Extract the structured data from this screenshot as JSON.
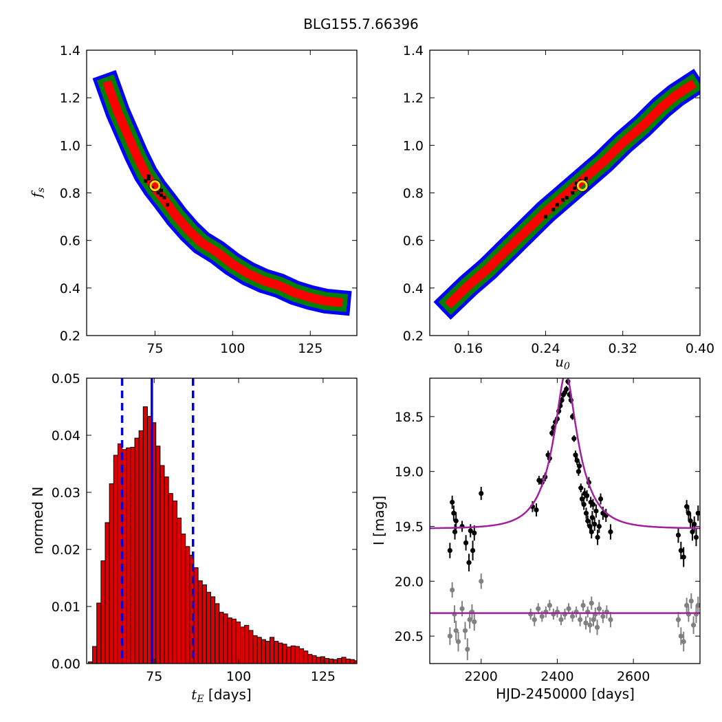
{
  "figure_title": "BLG155.7.66396",
  "chart_data": [
    {
      "id": "p1",
      "type": "heatmap",
      "title": "",
      "xlabel": "",
      "ylabel_main": "f",
      "ylabel_sub": "s",
      "xlim": [
        53,
        140
      ],
      "ylim": [
        0.2,
        1.4
      ],
      "xticks": [
        75,
        100,
        125
      ],
      "yticks": [
        0.2,
        0.4,
        0.6,
        0.8,
        1.0,
        1.2,
        1.4
      ],
      "xtick_labels": [
        "75",
        "100",
        "125"
      ],
      "ytick_labels": [
        "0.2",
        "0.4",
        "0.6",
        "0.8",
        "1.0",
        "1.2",
        "1.4"
      ],
      "colors": {
        "sigma3": "#0000ff",
        "sigma2": "#008000",
        "sigma1": "#ff0000",
        "samples": "#000000",
        "best_fit": "#ffd700"
      },
      "ridge": [
        [
          60,
          1.25
        ],
        [
          63,
          1.14
        ],
        [
          66,
          1.05
        ],
        [
          69,
          0.96
        ],
        [
          72,
          0.88
        ],
        [
          75,
          0.82
        ],
        [
          78,
          0.77
        ],
        [
          82,
          0.7
        ],
        [
          86,
          0.64
        ],
        [
          90,
          0.59
        ],
        [
          95,
          0.55
        ],
        [
          100,
          0.5
        ],
        [
          105,
          0.46
        ],
        [
          110,
          0.43
        ],
        [
          115,
          0.41
        ],
        [
          120,
          0.38
        ],
        [
          125,
          0.36
        ],
        [
          130,
          0.345
        ],
        [
          134,
          0.34
        ]
      ],
      "best_fit": [
        75,
        0.83
      ],
      "samples": [
        [
          72,
          0.85
        ],
        [
          73,
          0.87
        ],
        [
          74,
          0.82
        ],
        [
          76,
          0.8
        ],
        [
          77,
          0.79
        ],
        [
          78,
          0.78
        ],
        [
          77,
          0.81
        ],
        [
          73,
          0.86
        ],
        [
          79,
          0.75
        ]
      ]
    },
    {
      "id": "p2",
      "type": "heatmap",
      "title": "",
      "xlabel_main": "u",
      "xlabel_sub": "0",
      "ylabel": "",
      "xlim": [
        0.12,
        0.4
      ],
      "ylim": [
        0.2,
        1.4
      ],
      "xticks": [
        0.16,
        0.24,
        0.32,
        0.4
      ],
      "yticks": [
        0.2,
        0.4,
        0.6,
        0.8,
        1.0,
        1.2,
        1.4
      ],
      "xtick_labels": [
        "0.16",
        "0.24",
        "0.32",
        "0.40"
      ],
      "ytick_labels": [
        "0.2",
        "0.4",
        "0.6",
        "0.8",
        "1.0",
        "1.2",
        "1.4"
      ],
      "colors": {
        "sigma3": "#0000ff",
        "sigma2": "#008000",
        "sigma1": "#ff0000",
        "samples": "#000000",
        "best_fit": "#ffd700"
      },
      "ridge": [
        [
          0.142,
          0.34
        ],
        [
          0.16,
          0.41
        ],
        [
          0.18,
          0.48
        ],
        [
          0.2,
          0.56
        ],
        [
          0.22,
          0.64
        ],
        [
          0.24,
          0.72
        ],
        [
          0.26,
          0.79
        ],
        [
          0.28,
          0.86
        ],
        [
          0.3,
          0.93
        ],
        [
          0.32,
          1.01
        ],
        [
          0.34,
          1.08
        ],
        [
          0.36,
          1.16
        ],
        [
          0.375,
          1.21
        ],
        [
          0.39,
          1.25
        ]
      ],
      "best_fit": [
        0.278,
        0.83
      ],
      "samples": [
        [
          0.27,
          0.82
        ],
        [
          0.268,
          0.8
        ],
        [
          0.262,
          0.78
        ],
        [
          0.258,
          0.77
        ],
        [
          0.252,
          0.75
        ],
        [
          0.248,
          0.73
        ],
        [
          0.276,
          0.85
        ],
        [
          0.282,
          0.86
        ],
        [
          0.24,
          0.7
        ],
        [
          0.272,
          0.84
        ]
      ]
    },
    {
      "id": "p3",
      "type": "bar",
      "title": "",
      "xlabel_main": "t",
      "xlabel_sub": "E",
      "xlabel_rest": " [days]",
      "ylabel": "normed N",
      "xlim": [
        55,
        135
      ],
      "ylim": [
        0,
        0.05
      ],
      "xticks": [
        75,
        100,
        125
      ],
      "yticks": [
        0.0,
        0.01,
        0.02,
        0.03,
        0.04,
        0.05
      ],
      "xtick_labels": [
        "75",
        "100",
        "125"
      ],
      "ytick_labels": [
        "0.00",
        "0.01",
        "0.02",
        "0.03",
        "0.04",
        "0.05"
      ],
      "bar_color": "#dd0000",
      "bin_start": 55.5,
      "bin_width": 1.25,
      "values": [
        0.0003,
        0.003,
        0.0106,
        0.018,
        0.0247,
        0.0315,
        0.0365,
        0.0385,
        0.0375,
        0.0378,
        0.0379,
        0.0395,
        0.0408,
        0.045,
        0.0433,
        0.0422,
        0.0381,
        0.0347,
        0.0327,
        0.0298,
        0.0285,
        0.0255,
        0.0227,
        0.0205,
        0.019,
        0.0168,
        0.0145,
        0.0138,
        0.0125,
        0.0117,
        0.0105,
        0.009,
        0.0087,
        0.008,
        0.0078,
        0.0073,
        0.0064,
        0.0067,
        0.0058,
        0.0049,
        0.0046,
        0.0042,
        0.0039,
        0.0046,
        0.0039,
        0.0036,
        0.0034,
        0.0029,
        0.0031,
        0.003,
        0.0026,
        0.0022,
        0.0016,
        0.0014,
        0.0011,
        0.0012,
        0.0009,
        0.0008,
        0.0007,
        0.0009,
        0.0011,
        0.0008,
        0.0007,
        0.0005
      ],
      "median_line": 74.3,
      "dashed_lines": [
        65.5,
        86.5
      ],
      "line_color": "#0000dd"
    },
    {
      "id": "p4",
      "type": "scatter",
      "title": "",
      "xlabel": "HJD-2450000 [days]",
      "ylabel": "I [mag]",
      "xlim": [
        2065,
        2775
      ],
      "ylim": [
        20.75,
        18.15
      ],
      "xticks": [
        2200,
        2400,
        2600
      ],
      "yticks": [
        18.5,
        19.0,
        19.5,
        20.0,
        20.5
      ],
      "xtick_labels": [
        "2200",
        "2400",
        "2600"
      ],
      "ytick_labels": [
        "18.5",
        "19.0",
        "19.5",
        "20.0",
        "20.5"
      ],
      "model_color": "#a020a0",
      "model": {
        "baseline": 19.52,
        "t0": 2422,
        "tE": 74,
        "u0": 0.28,
        "second_baseline": 20.29
      },
      "series": [
        {
          "name": "",
          "color": "#000000",
          "points": [
            [
              2118,
              19.72,
              0.07
            ],
            [
              2124,
              19.28,
              0.06
            ],
            [
              2128,
              19.38,
              0.07
            ],
            [
              2131,
              19.55,
              0.07
            ],
            [
              2134,
              19.45,
              0.08
            ],
            [
              2150,
              19.5,
              0.05
            ],
            [
              2160,
              19.65,
              0.07
            ],
            [
              2168,
              19.83,
              0.08
            ],
            [
              2172,
              19.54,
              0.06
            ],
            [
              2178,
              19.72,
              0.09
            ],
            [
              2182,
              19.56,
              0.07
            ],
            [
              2200,
              19.2,
              0.06
            ],
            [
              2335,
              19.32,
              0.05
            ],
            [
              2345,
              19.35,
              0.06
            ],
            [
              2352,
              19.08,
              0.04
            ],
            [
              2360,
              19.1,
              0.04
            ],
            [
              2368,
              19.05,
              0.04
            ],
            [
              2376,
              18.85,
              0.04
            ],
            [
              2380,
              18.88,
              0.04
            ],
            [
              2386,
              18.65,
              0.03
            ],
            [
              2390,
              18.6,
              0.03
            ],
            [
              2395,
              18.55,
              0.03
            ],
            [
              2400,
              18.52,
              0.03
            ],
            [
              2404,
              18.45,
              0.03
            ],
            [
              2408,
              18.4,
              0.03
            ],
            [
              2412,
              18.35,
              0.03
            ],
            [
              2416,
              18.3,
              0.03
            ],
            [
              2420,
              18.28,
              0.03
            ],
            [
              2424,
              18.25,
              0.03
            ],
            [
              2428,
              18.18,
              0.03
            ],
            [
              2432,
              18.3,
              0.03
            ],
            [
              2436,
              18.35,
              0.03
            ],
            [
              2440,
              18.5,
              0.03
            ],
            [
              2444,
              18.7,
              0.03
            ],
            [
              2448,
              18.85,
              0.04
            ],
            [
              2452,
              18.9,
              0.04
            ],
            [
              2456,
              19.0,
              0.04
            ],
            [
              2458,
              18.95,
              0.04
            ],
            [
              2462,
              19.15,
              0.04
            ],
            [
              2465,
              19.25,
              0.05
            ],
            [
              2470,
              19.3,
              0.05
            ],
            [
              2472,
              19.2,
              0.05
            ],
            [
              2476,
              19.38,
              0.05
            ],
            [
              2478,
              19.22,
              0.05
            ],
            [
              2480,
              19.45,
              0.05
            ],
            [
              2483,
              19.1,
              0.05
            ],
            [
              2486,
              19.5,
              0.06
            ],
            [
              2488,
              19.28,
              0.05
            ],
            [
              2490,
              19.55,
              0.06
            ],
            [
              2492,
              19.42,
              0.06
            ],
            [
              2494,
              19.3,
              0.05
            ],
            [
              2498,
              19.48,
              0.06
            ],
            [
              2502,
              19.36,
              0.06
            ],
            [
              2506,
              19.6,
              0.07
            ],
            [
              2510,
              19.5,
              0.06
            ],
            [
              2514,
              19.25,
              0.05
            ],
            [
              2520,
              19.38,
              0.06
            ],
            [
              2528,
              19.4,
              0.06
            ],
            [
              2540,
              19.55,
              0.07
            ],
            [
              2718,
              19.58,
              0.07
            ],
            [
              2725,
              19.72,
              0.08
            ],
            [
              2732,
              19.78,
              0.09
            ],
            [
              2740,
              19.32,
              0.06
            ],
            [
              2745,
              19.38,
              0.07
            ],
            [
              2750,
              19.45,
              0.07
            ],
            [
              2755,
              19.55,
              0.08
            ],
            [
              2760,
              19.48,
              0.07
            ],
            [
              2765,
              19.6,
              0.08
            ],
            [
              2770,
              19.38,
              0.07
            ]
          ]
        },
        {
          "name": "",
          "color": "#808080",
          "points": [
            [
              2118,
              20.5,
              0.08
            ],
            [
              2124,
              20.08,
              0.07
            ],
            [
              2130,
              20.3,
              0.08
            ],
            [
              2134,
              20.45,
              0.09
            ],
            [
              2140,
              20.55,
              0.09
            ],
            [
              2150,
              20.25,
              0.07
            ],
            [
              2158,
              20.45,
              0.08
            ],
            [
              2164,
              20.62,
              0.1
            ],
            [
              2170,
              20.35,
              0.08
            ],
            [
              2176,
              20.28,
              0.07
            ],
            [
              2182,
              20.37,
              0.08
            ],
            [
              2200,
              20.0,
              0.07
            ],
            [
              2330,
              20.3,
              0.05
            ],
            [
              2340,
              20.35,
              0.06
            ],
            [
              2350,
              20.25,
              0.05
            ],
            [
              2360,
              20.32,
              0.05
            ],
            [
              2370,
              20.28,
              0.05
            ],
            [
              2380,
              20.22,
              0.05
            ],
            [
              2390,
              20.3,
              0.05
            ],
            [
              2400,
              20.28,
              0.05
            ],
            [
              2410,
              20.35,
              0.05
            ],
            [
              2420,
              20.3,
              0.05
            ],
            [
              2430,
              20.25,
              0.05
            ],
            [
              2440,
              20.32,
              0.05
            ],
            [
              2450,
              20.28,
              0.05
            ],
            [
              2460,
              20.35,
              0.06
            ],
            [
              2468,
              20.22,
              0.05
            ],
            [
              2475,
              20.38,
              0.06
            ],
            [
              2480,
              20.28,
              0.05
            ],
            [
              2486,
              20.4,
              0.07
            ],
            [
              2490,
              20.2,
              0.06
            ],
            [
              2495,
              20.35,
              0.06
            ],
            [
              2500,
              20.3,
              0.06
            ],
            [
              2505,
              20.42,
              0.07
            ],
            [
              2510,
              20.25,
              0.06
            ],
            [
              2520,
              20.32,
              0.06
            ],
            [
              2530,
              20.28,
              0.06
            ],
            [
              2540,
              20.35,
              0.07
            ],
            [
              2718,
              20.35,
              0.07
            ],
            [
              2725,
              20.5,
              0.08
            ],
            [
              2732,
              20.55,
              0.09
            ],
            [
              2740,
              20.22,
              0.07
            ],
            [
              2745,
              20.3,
              0.07
            ],
            [
              2752,
              20.18,
              0.07
            ],
            [
              2758,
              20.4,
              0.08
            ],
            [
              2765,
              20.3,
              0.08
            ],
            [
              2770,
              20.22,
              0.08
            ]
          ]
        }
      ]
    }
  ]
}
